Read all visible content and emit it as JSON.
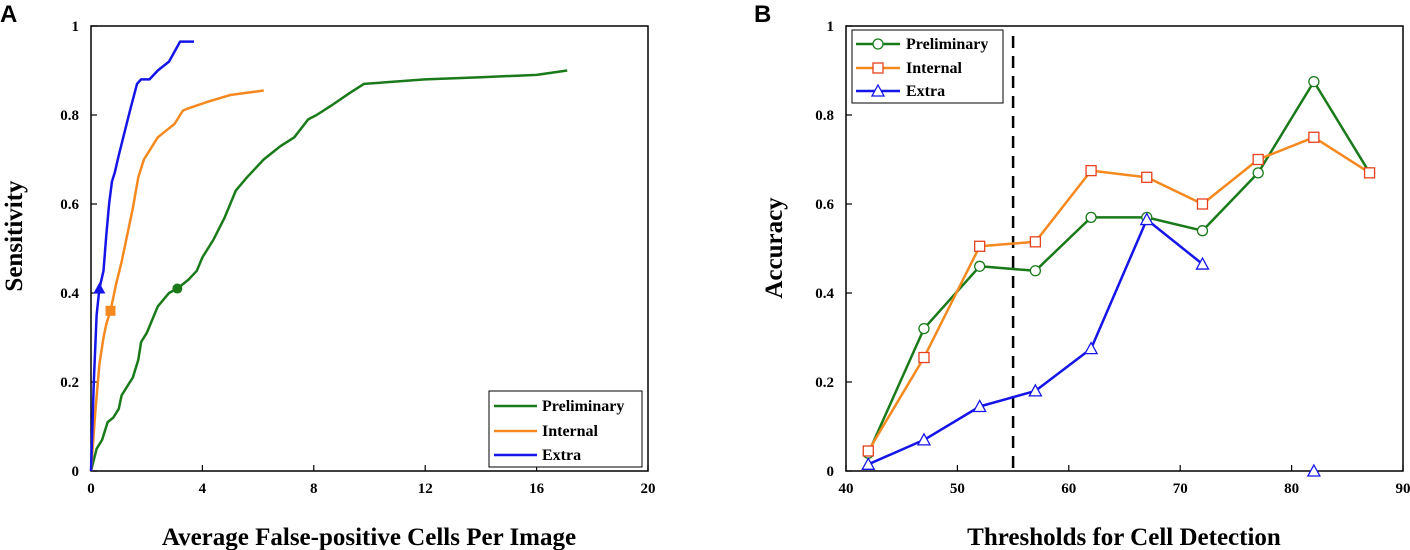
{
  "chart_data": [
    {
      "panel": "A",
      "type": "line",
      "xlabel": "Average False-positive Cells Per Image",
      "ylabel": "Sensitivity",
      "xlim": [
        0,
        20
      ],
      "ylim": [
        0,
        1
      ],
      "xticks": [
        0,
        4,
        8,
        12,
        16,
        20
      ],
      "yticks": [
        0,
        0.2,
        0.4,
        0.6,
        0.8,
        1
      ],
      "xtick_labels": [
        "0",
        "4",
        "8",
        "12",
        "16",
        "20"
      ],
      "ytick_labels": [
        "0",
        "0.2",
        "0.4",
        "0.6",
        "0.8",
        "1"
      ],
      "legend_position": "bottom-right",
      "series": [
        {
          "name": "Preliminary",
          "color": "#1a7a1a",
          "marker": "filled-circle",
          "marker_point": [
            3.1,
            0.41
          ],
          "x": [
            0,
            0.2,
            0.4,
            0.5,
            0.6,
            0.8,
            1.0,
            1.1,
            1.3,
            1.5,
            1.7,
            1.8,
            2.0,
            2.4,
            2.8,
            3.1,
            3.5,
            3.8,
            4.0,
            4.4,
            4.8,
            5.2,
            5.6,
            6.2,
            6.6,
            6.8,
            7.3,
            7.8,
            8.1,
            8.6,
            9.3,
            9.8,
            12,
            14,
            16,
            17.1
          ],
          "y": [
            0,
            0.05,
            0.07,
            0.09,
            0.11,
            0.12,
            0.14,
            0.17,
            0.19,
            0.21,
            0.25,
            0.29,
            0.31,
            0.37,
            0.4,
            0.41,
            0.43,
            0.45,
            0.48,
            0.52,
            0.57,
            0.63,
            0.66,
            0.7,
            0.72,
            0.73,
            0.75,
            0.79,
            0.8,
            0.82,
            0.85,
            0.87,
            0.88,
            0.885,
            0.89,
            0.9
          ]
        },
        {
          "name": "Internal",
          "color": "#f5891f",
          "marker": "filled-square",
          "marker_point": [
            0.7,
            0.36
          ],
          "x": [
            0,
            0.15,
            0.3,
            0.45,
            0.55,
            0.7,
            0.9,
            1.1,
            1.3,
            1.5,
            1.7,
            1.9,
            2.1,
            2.4,
            2.6,
            2.8,
            3.0,
            3.3,
            3.5,
            4.2,
            5.0,
            5.6,
            6.2
          ],
          "y": [
            0,
            0.13,
            0.24,
            0.3,
            0.33,
            0.36,
            0.42,
            0.47,
            0.53,
            0.59,
            0.66,
            0.7,
            0.72,
            0.75,
            0.76,
            0.77,
            0.78,
            0.81,
            0.815,
            0.83,
            0.845,
            0.85,
            0.855
          ]
        },
        {
          "name": "Extra",
          "color": "#1515e8",
          "marker": "filled-triangle",
          "marker_point": [
            0.3,
            0.41
          ],
          "x": [
            0,
            0.1,
            0.2,
            0.3,
            0.45,
            0.55,
            0.65,
            0.75,
            0.85,
            1.0,
            1.2,
            1.4,
            1.65,
            1.8,
            2.1,
            2.4,
            2.8,
            3.2,
            3.7
          ],
          "y": [
            0,
            0.2,
            0.35,
            0.41,
            0.45,
            0.53,
            0.6,
            0.65,
            0.67,
            0.71,
            0.76,
            0.81,
            0.87,
            0.88,
            0.88,
            0.9,
            0.92,
            0.965,
            0.965
          ]
        }
      ]
    },
    {
      "panel": "B",
      "type": "line",
      "xlabel": "Thresholds for Cell Detection",
      "ylabel": "Accuracy",
      "xlim": [
        40,
        90
      ],
      "ylim": [
        0,
        1
      ],
      "xticks": [
        40,
        50,
        60,
        70,
        80,
        90
      ],
      "yticks": [
        0,
        0.2,
        0.4,
        0.6,
        0.8,
        1
      ],
      "xtick_labels": [
        "40",
        "50",
        "60",
        "70",
        "80",
        "90"
      ],
      "ytick_labels": [
        "0",
        "0.2",
        "0.4",
        "0.6",
        "0.8",
        "1"
      ],
      "vertical_reference_line_x": 55,
      "legend_position": "top-left",
      "series": [
        {
          "name": "Preliminary",
          "color": "#1a7a1a",
          "marker": "open-circle",
          "x": [
            42,
            47,
            52,
            57,
            62,
            67,
            72,
            77,
            82,
            87
          ],
          "y": [
            0.04,
            0.32,
            0.46,
            0.45,
            0.57,
            0.57,
            0.54,
            0.67,
            0.875,
            0.67
          ]
        },
        {
          "name": "Internal",
          "color": "#f5891f",
          "marker": "open-square",
          "x": [
            42,
            47,
            52,
            57,
            62,
            67,
            72,
            77,
            82,
            87
          ],
          "y": [
            0.045,
            0.255,
            0.505,
            0.515,
            0.675,
            0.66,
            0.6,
            0.7,
            0.75,
            0.67
          ]
        },
        {
          "name": "Extra",
          "color": "#1515e8",
          "marker": "open-triangle",
          "x": [
            42,
            47,
            52,
            57,
            62,
            67,
            72
          ],
          "y": [
            0.015,
            0.07,
            0.145,
            0.18,
            0.275,
            0.565,
            0.465
          ],
          "extra_point": [
            82,
            0
          ]
        }
      ]
    }
  ]
}
